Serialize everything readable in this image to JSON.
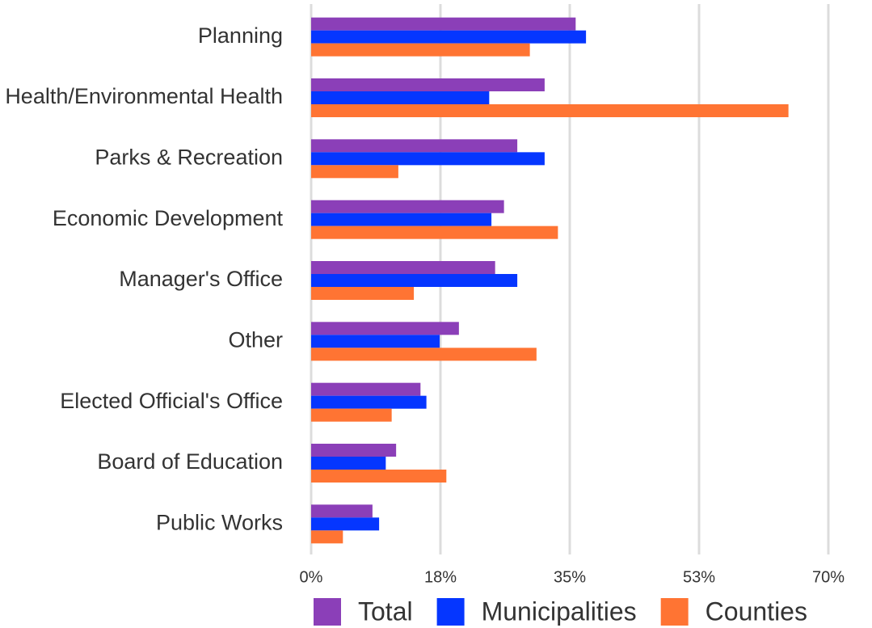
{
  "chart_data": {
    "type": "hbar",
    "categories": [
      "Planning",
      "Health/Environmental Health",
      "Parks & Recreation",
      "Economic Development",
      "Manager's Office",
      "Other",
      "Elected Official's Office",
      "Board of Education",
      "Public Works"
    ],
    "series": [
      {
        "name": "Total",
        "color": "#8b3fb8",
        "values": [
          35.8,
          31.6,
          27.9,
          26.1,
          24.9,
          20.0,
          14.8,
          11.5,
          8.3
        ]
      },
      {
        "name": "Municipalities",
        "color": "#0536ff",
        "values": [
          37.2,
          24.1,
          31.6,
          24.4,
          27.9,
          17.4,
          15.6,
          10.1,
          9.2
        ]
      },
      {
        "name": "Counties",
        "color": "#ff7433",
        "values": [
          29.6,
          64.6,
          11.8,
          33.4,
          13.9,
          30.5,
          10.9,
          18.3,
          4.3
        ]
      }
    ],
    "xlim": [
      0,
      70
    ],
    "xticks": [
      {
        "value": 0,
        "label": "0%"
      },
      {
        "value": 17.5,
        "label": "18%"
      },
      {
        "value": 35,
        "label": "35%"
      },
      {
        "value": 52.5,
        "label": "53%"
      },
      {
        "value": 70,
        "label": "70%"
      }
    ],
    "grid": true,
    "legend": "bottom"
  }
}
